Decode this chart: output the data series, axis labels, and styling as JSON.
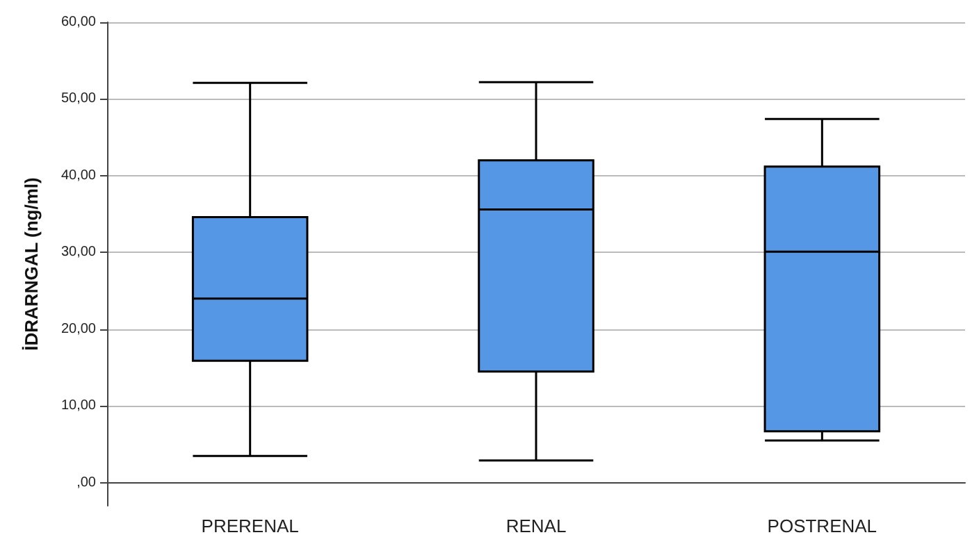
{
  "chart_data": {
    "type": "box",
    "ylabel": "İDRARNGAL (ng/ml)",
    "categories": [
      "PRERENAL",
      "RENAL",
      "POSTRENAL"
    ],
    "boxes": [
      {
        "low": 3.5,
        "q1": 15.9,
        "median": 24.0,
        "q3": 34.6,
        "high": 52.1
      },
      {
        "low": 2.9,
        "q1": 14.5,
        "median": 35.6,
        "q3": 42.0,
        "high": 52.2
      },
      {
        "low": 5.5,
        "q1": 6.7,
        "median": 30.1,
        "q3": 41.2,
        "high": 47.4
      }
    ],
    "color": "#5596e5",
    "ylim": [
      -3,
      60
    ],
    "yticks": [
      {
        "value": 0,
        "label": ",00"
      },
      {
        "value": 10,
        "label": "10,00"
      },
      {
        "value": 20,
        "label": "20,00"
      },
      {
        "value": 30,
        "label": "30,00"
      },
      {
        "value": 40,
        "label": "40,00"
      },
      {
        "value": 50,
        "label": "50,00"
      },
      {
        "value": 60,
        "label": "60,00"
      }
    ],
    "grid": "y"
  }
}
